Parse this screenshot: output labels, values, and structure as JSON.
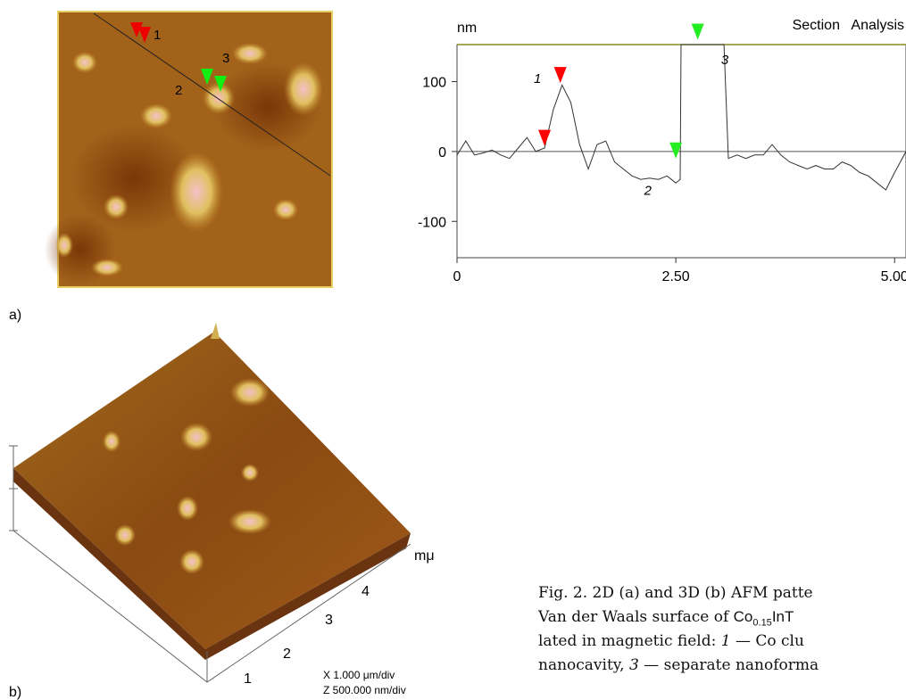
{
  "panel_a": {
    "label": "a)",
    "image_labels": [
      "1",
      "2",
      "3"
    ]
  },
  "chart_data": {
    "type": "line",
    "title": "Section   Analysis",
    "y_label": "nm",
    "x": [
      0,
      0.1,
      0.2,
      0.3,
      0.4,
      0.5,
      0.6,
      0.7,
      0.8,
      0.9,
      1.0,
      1.1,
      1.2,
      1.3,
      1.4,
      1.5,
      1.6,
      1.7,
      1.8,
      1.9,
      2.0,
      2.1,
      2.2,
      2.3,
      2.4,
      2.5,
      2.55,
      2.56,
      2.7,
      2.8,
      2.94,
      3.0,
      3.05,
      3.1,
      3.2,
      3.3,
      3.4,
      3.5,
      3.6,
      3.7,
      3.8,
      3.9,
      4.0,
      4.1,
      4.2,
      4.3,
      4.4,
      4.5,
      4.6,
      4.7,
      4.8,
      4.9,
      5.0,
      5.13
    ],
    "series": [
      {
        "color": "#333333",
        "values": [
          -5,
          15,
          -5,
          -2,
          2,
          -5,
          -10,
          5,
          20,
          0,
          5,
          60,
          95,
          70,
          10,
          -25,
          10,
          15,
          -15,
          -25,
          -35,
          -40,
          -38,
          -40,
          -35,
          -45,
          -40,
          153,
          153,
          153,
          153,
          153,
          153,
          -10,
          -5,
          -10,
          -5,
          -5,
          10,
          -5,
          -15,
          -20,
          -25,
          -20,
          -25,
          -25,
          -15,
          -20,
          -30,
          -35,
          -45,
          -55,
          -30,
          0
        ]
      }
    ],
    "xlim": [
      0,
      5.13
    ],
    "ylim": [
      -152,
      153
    ],
    "xticks": [
      0,
      {
        "value": 2.5,
        "label": "2.50"
      },
      {
        "value": 5,
        "label": "5.00"
      }
    ],
    "yticks": [
      -100,
      0,
      100
    ],
    "markers": [
      {
        "x": 1.0,
        "y": 8,
        "color": "#ff0000"
      },
      {
        "x": 1.18,
        "y": 98,
        "color": "#ff0000"
      },
      {
        "x": 2.5,
        "y": -10,
        "color": "#22ee22"
      },
      {
        "x": 2.75,
        "y": 160,
        "color": "#22ee22"
      }
    ],
    "annotations": [
      {
        "label": "1",
        "x": 0.92,
        "y": 98
      },
      {
        "label": "2",
        "x": 2.18,
        "y": -62
      },
      {
        "label": "3",
        "x": 3.06,
        "y": 125
      }
    ]
  },
  "panel_b": {
    "label": "b)",
    "axis_unit": "mμ",
    "axis_ticks": [
      "1",
      "2",
      "3",
      "4"
    ],
    "scale_x": "X 1.000  μm/div",
    "scale_z": "Z 500.000  nm/div"
  },
  "caption": {
    "line1": "Fig. 2. 2D (a) and 3D (b) AFM patte",
    "line2": {
      "pre": "Van der Waals surface of ",
      "formula": "Co",
      "sub": "0.15",
      "post": "InT"
    },
    "line3": {
      "pre": "lated in magnetic field: ",
      "num": "1",
      "post": " — Co clu"
    },
    "line4": {
      "pre": "nanocavity, ",
      "num": "3",
      "post": " — separate nanoforma"
    }
  }
}
